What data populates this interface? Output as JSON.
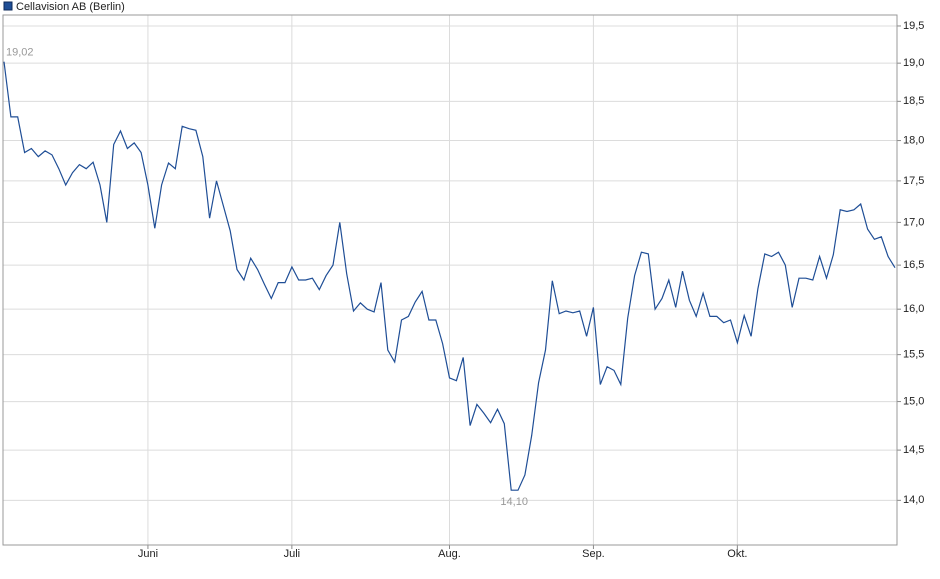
{
  "chart_data": {
    "type": "line",
    "log_scale": true,
    "grid": true,
    "legend_position": "top-left",
    "categories": [
      null,
      null,
      null,
      null,
      null,
      null,
      null,
      null,
      null,
      null,
      null,
      null,
      null,
      null,
      null,
      null,
      null,
      null,
      null,
      null,
      null,
      "Juni",
      null,
      null,
      null,
      null,
      null,
      null,
      null,
      null,
      null,
      null,
      null,
      null,
      null,
      null,
      null,
      null,
      null,
      null,
      null,
      null,
      "Juli",
      null,
      null,
      null,
      null,
      null,
      null,
      null,
      null,
      null,
      null,
      null,
      null,
      null,
      null,
      null,
      null,
      null,
      null,
      null,
      null,
      null,
      null,
      "Aug.",
      null,
      null,
      null,
      null,
      null,
      null,
      null,
      null,
      null,
      null,
      null,
      null,
      null,
      null,
      null,
      null,
      null,
      null,
      null,
      null,
      "Sep.",
      null,
      null,
      null,
      null,
      null,
      null,
      null,
      null,
      null,
      null,
      null,
      null,
      null,
      null,
      null,
      null,
      null,
      null,
      null,
      null,
      "Okt.",
      null,
      null,
      null,
      null,
      null,
      null,
      null,
      null,
      null,
      null,
      null,
      null,
      null,
      null,
      null,
      null,
      null,
      null,
      null,
      null,
      null,
      null,
      null
    ],
    "series": [
      {
        "name": "Cellavision AB (Berlin)",
        "color": "#1f4e96",
        "values": [
          19.02,
          18.3,
          18.3,
          17.85,
          17.9,
          17.8,
          17.87,
          17.82,
          17.65,
          17.45,
          17.6,
          17.7,
          17.65,
          17.73,
          17.45,
          17.0,
          17.95,
          18.12,
          17.9,
          17.97,
          17.85,
          17.45,
          16.93,
          17.45,
          17.72,
          17.65,
          18.18,
          18.15,
          18.13,
          17.8,
          17.05,
          17.5,
          17.2,
          16.9,
          16.45,
          16.33,
          16.58,
          16.45,
          16.28,
          16.12,
          16.3,
          16.3,
          16.48,
          16.33,
          16.33,
          16.35,
          16.22,
          16.38,
          16.5,
          17.0,
          16.4,
          15.98,
          16.07,
          16.0,
          15.97,
          16.3,
          15.55,
          15.42,
          15.88,
          15.92,
          16.08,
          16.2,
          15.88,
          15.88,
          15.62,
          15.25,
          15.22,
          15.47,
          14.75,
          14.97,
          14.88,
          14.78,
          14.92,
          14.77,
          14.1,
          14.1,
          14.25,
          14.65,
          15.2,
          15.55,
          16.32,
          15.95,
          15.98,
          15.96,
          15.98,
          15.7,
          16.02,
          15.18,
          15.37,
          15.33,
          15.18,
          15.9,
          16.38,
          16.65,
          16.63,
          16.0,
          16.12,
          16.33,
          16.02,
          16.43,
          16.1,
          15.92,
          16.18,
          15.92,
          15.92,
          15.85,
          15.88,
          15.63,
          15.93,
          15.7,
          16.23,
          16.63,
          16.6,
          16.65,
          16.5,
          16.02,
          16.35,
          16.35,
          16.33,
          16.6,
          16.35,
          16.62,
          17.15,
          17.13,
          17.15,
          17.22,
          16.92,
          16.8,
          16.83,
          16.6,
          16.47
        ],
        "value_labels": [
          "19,02",
          null,
          null,
          null,
          null,
          null,
          null,
          null,
          null,
          null,
          null,
          null,
          null,
          null,
          null,
          null,
          null,
          null,
          null,
          null,
          null,
          null,
          null,
          null,
          null,
          null,
          null,
          null,
          null,
          null,
          null,
          null,
          null,
          null,
          null,
          null,
          null,
          null,
          null,
          null,
          null,
          null,
          null,
          null,
          null,
          null,
          null,
          null,
          null,
          null,
          null,
          null,
          null,
          null,
          null,
          null,
          null,
          null,
          null,
          null,
          null,
          null,
          null,
          null,
          null,
          null,
          null,
          null,
          null,
          null,
          null,
          null,
          null,
          null,
          "14,10",
          null,
          null,
          null,
          null,
          null,
          null,
          null,
          null,
          null,
          null,
          null,
          null,
          null,
          null,
          null,
          null,
          null,
          null,
          null,
          null,
          null,
          null,
          null,
          null,
          null,
          null,
          null,
          null,
          null,
          null,
          null,
          null,
          null,
          null,
          null,
          null,
          null,
          null,
          null,
          null,
          null,
          null,
          null,
          null,
          null,
          null,
          null,
          null,
          null,
          null,
          null,
          null,
          null,
          null,
          null,
          null
        ]
      }
    ],
    "ylim": [
      13.57,
      19.65
    ],
    "yticks": [
      {
        "value": 14.0,
        "label": "14,0"
      },
      {
        "value": 14.5,
        "label": "14,5"
      },
      {
        "value": 15.0,
        "label": "15,0"
      },
      {
        "value": 15.5,
        "label": "15,5"
      },
      {
        "value": 16.0,
        "label": "16,0"
      },
      {
        "value": 16.5,
        "label": "16,5"
      },
      {
        "value": 17.0,
        "label": "17,0"
      },
      {
        "value": 17.5,
        "label": "17,5"
      },
      {
        "value": 18.0,
        "label": "18,0"
      },
      {
        "value": 18.5,
        "label": "18,5"
      },
      {
        "value": 19.0,
        "label": "19,0"
      },
      {
        "value": 19.5,
        "label": "19,5"
      }
    ]
  }
}
